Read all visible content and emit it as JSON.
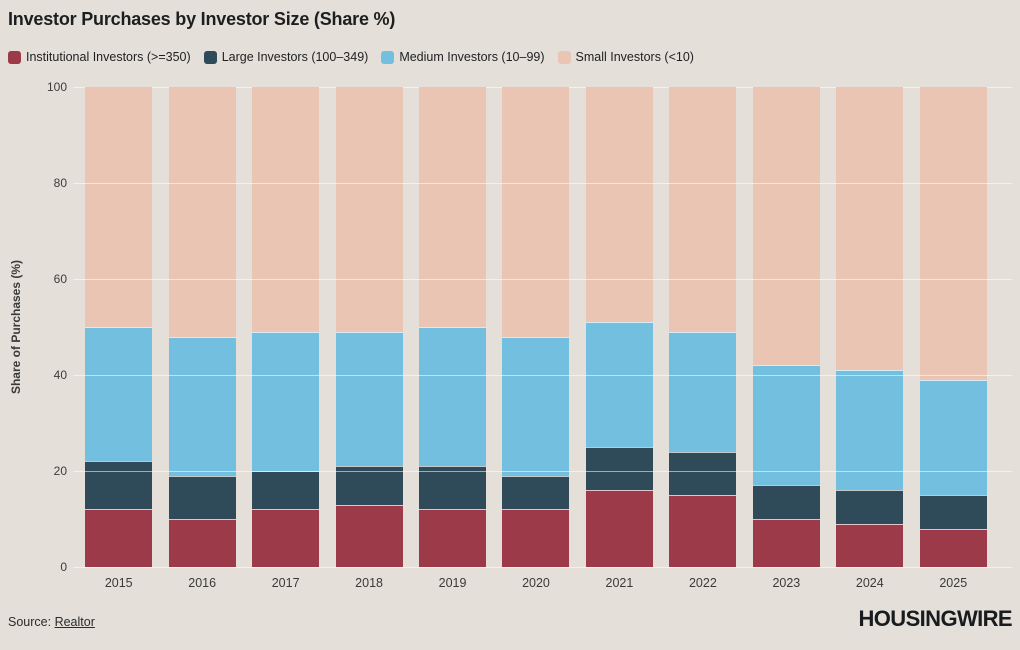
{
  "title": "Investor Purchases by Investor Size (Share %)",
  "colors": {
    "institutional": "#9c3a49",
    "large": "#2f4b59",
    "medium": "#72bfe0",
    "small": "#eac5b4",
    "background": "#e4e0d9",
    "grid": "rgba(255,255,255,0.55)",
    "text": "#1e1f21"
  },
  "legend": [
    {
      "label": "Institutional Investors (>=350)",
      "color": "#9c3a49"
    },
    {
      "label": "Large Investors (100–349)",
      "color": "#2f4b59"
    },
    {
      "label": "Medium Investors (10–99)",
      "color": "#72bfe0"
    },
    {
      "label": "Small Investors (<10)",
      "color": "#eac5b4"
    }
  ],
  "chart_data": {
    "type": "bar",
    "stacked": true,
    "title": "Investor Purchases by Investor Size (Share %)",
    "xlabel": "",
    "ylabel": "Share of Purchases (%)",
    "ylim": [
      0,
      100
    ],
    "yticks": [
      0,
      20,
      40,
      60,
      80,
      100
    ],
    "grid": true,
    "legend_position": "top",
    "categories": [
      "2015",
      "2016",
      "2017",
      "2018",
      "2019",
      "2020",
      "2021",
      "2022",
      "2023",
      "2024",
      "2025"
    ],
    "series": [
      {
        "name": "Institutional Investors (>=350)",
        "color": "#9c3a49",
        "values": [
          12,
          10,
          12,
          13,
          12,
          12,
          16,
          15,
          10,
          9,
          8
        ]
      },
      {
        "name": "Large Investors (100–349)",
        "color": "#2f4b59",
        "values": [
          10,
          9,
          8,
          8,
          9,
          7,
          9,
          9,
          7,
          7,
          7
        ]
      },
      {
        "name": "Medium Investors (10–99)",
        "color": "#72bfe0",
        "values": [
          28,
          29,
          29,
          28,
          29,
          29,
          26,
          25,
          25,
          25,
          24
        ]
      },
      {
        "name": "Small Investors (<10)",
        "color": "#eac5b4",
        "values": [
          50,
          52,
          51,
          51,
          50,
          52,
          49,
          51,
          58,
          59,
          61
        ]
      }
    ]
  },
  "footer": {
    "source_prefix": "Source: ",
    "source_link": "Realtor",
    "brand": "HOUSINGWIRE"
  }
}
